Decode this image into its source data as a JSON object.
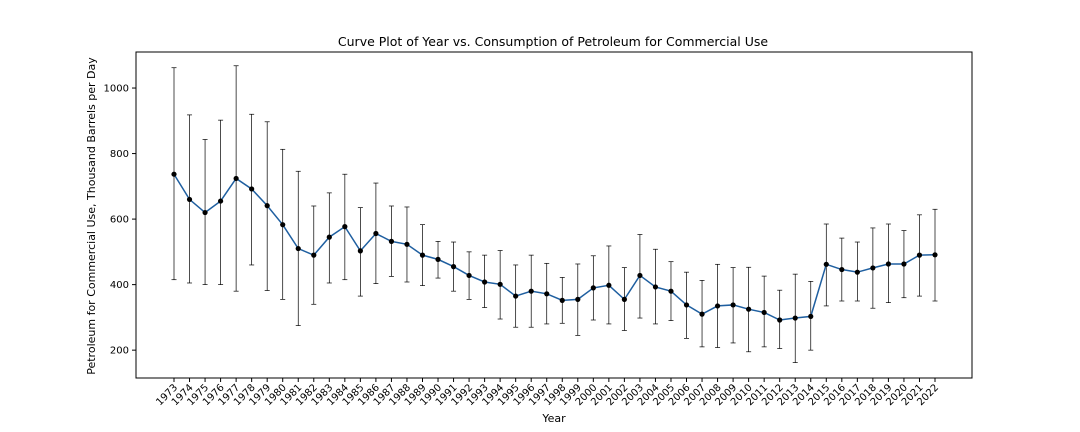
{
  "chart_data": {
    "type": "line",
    "title": "Curve Plot of Year vs. Consumption of Petroleum for Commercial Use",
    "xlabel": "Year",
    "ylabel": "Petroleum for Commercial Use, Thousand Barrels per Day",
    "ylim": [
      115,
      1110
    ],
    "yticks": [
      200,
      400,
      600,
      800,
      1000
    ],
    "grid": false,
    "colors": {
      "line": "#1f5fa0",
      "marker": "#000000",
      "errorbar": "#000000"
    },
    "categories": [
      "1973",
      "1974",
      "1975",
      "1976",
      "1977",
      "1978",
      "1979",
      "1980",
      "1981",
      "1982",
      "1983",
      "1984",
      "1985",
      "1986",
      "1987",
      "1988",
      "1989",
      "1990",
      "1991",
      "1992",
      "1993",
      "1994",
      "1995",
      "1996",
      "1997",
      "1998",
      "1999",
      "2000",
      "2001",
      "2002",
      "2003",
      "2004",
      "2005",
      "2006",
      "2007",
      "2008",
      "2009",
      "2010",
      "2011",
      "2012",
      "2013",
      "2014",
      "2015",
      "2016",
      "2017",
      "2018",
      "2019",
      "2020",
      "2021",
      "2022"
    ],
    "series": [
      {
        "values": [
          737,
          660,
          620,
          655,
          724,
          692,
          641,
          583,
          510,
          490,
          545,
          577,
          503,
          556,
          532,
          523,
          490,
          477,
          455,
          428,
          408,
          401,
          365,
          380,
          372,
          352,
          355,
          390,
          398,
          355,
          428,
          393,
          380,
          338,
          310,
          335,
          338,
          325,
          315,
          292,
          298,
          303,
          462,
          446,
          438,
          451,
          463,
          463,
          490,
          491
        ],
        "err_low": [
          415,
          405,
          400,
          400,
          380,
          460,
          382,
          355,
          275,
          340,
          405,
          415,
          365,
          403,
          425,
          408,
          397,
          420,
          380,
          355,
          330,
          295,
          270,
          270,
          280,
          282,
          245,
          292,
          280,
          260,
          298,
          280,
          290,
          236,
          210,
          208,
          222,
          195,
          210,
          205,
          162,
          200,
          335,
          350,
          350,
          328,
          345,
          360,
          365,
          350
        ],
        "err_high": [
          1062,
          918,
          843,
          902,
          1068,
          920,
          897,
          813,
          746,
          640,
          680,
          737,
          635,
          710,
          640,
          637,
          583,
          532,
          530,
          500,
          490,
          504,
          460,
          490,
          465,
          422,
          463,
          488,
          518,
          452,
          553,
          508,
          470,
          438,
          413,
          462,
          452,
          453,
          426,
          383,
          432,
          410,
          585,
          542,
          530,
          573,
          585,
          565,
          613,
          630
        ]
      }
    ]
  }
}
